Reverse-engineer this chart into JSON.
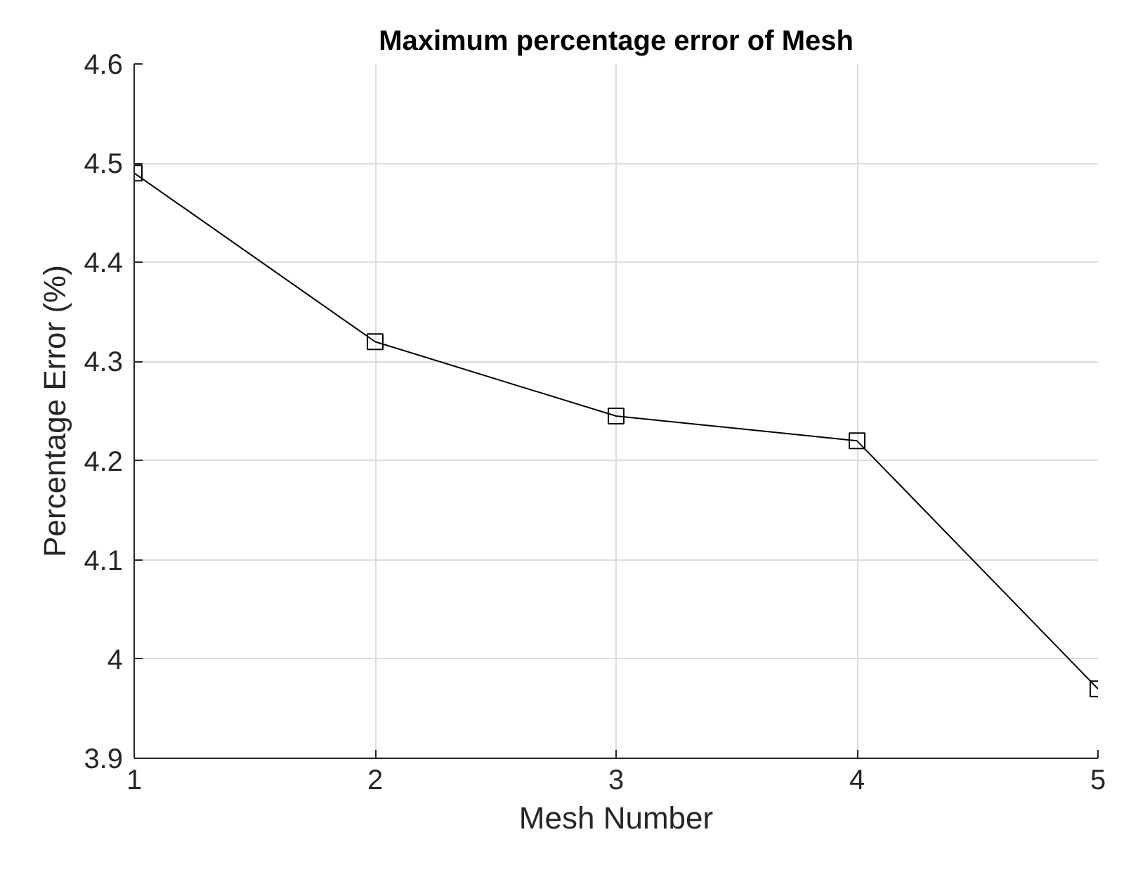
{
  "chart_data": {
    "type": "line",
    "title": "Maximum percentage error of Mesh",
    "xlabel": "Mesh Number",
    "ylabel": "Percentage Error (%)",
    "x": [
      1,
      2,
      3,
      4,
      5
    ],
    "series": [
      {
        "color": "#000000",
        "values": [
          4.49,
          4.32,
          4.245,
          4.22,
          3.97
        ]
      }
    ],
    "xlim": [
      1,
      5
    ],
    "xticks": [
      1,
      2,
      3,
      4,
      5
    ],
    "ylim": [
      3.9,
      4.6
    ],
    "yticks": [
      3.9,
      {
        "value": 4.0,
        "label": "4"
      },
      4.1,
      4.2,
      4.3,
      4.4,
      4.5,
      4.6
    ],
    "grid": true,
    "marker": "square",
    "line_style": "solid"
  }
}
